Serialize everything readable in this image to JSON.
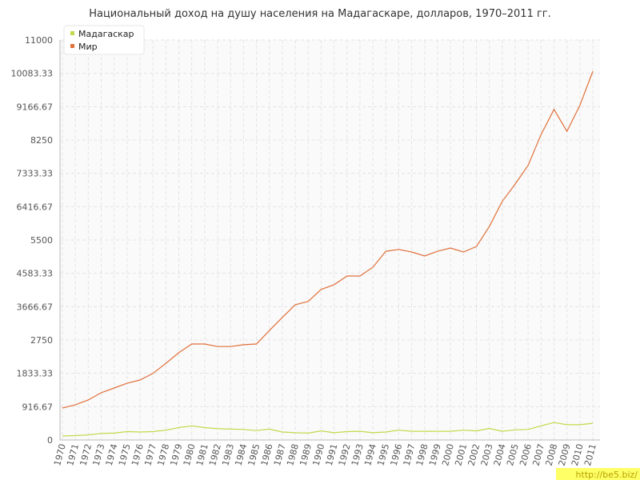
{
  "chart_data": {
    "type": "line",
    "title": "Национальный доход на душу населения на Мадагаскаре, долларов, 1970–2011 гг.",
    "categories": [
      "1970",
      "1971",
      "1972",
      "1973",
      "1974",
      "1975",
      "1976",
      "1977",
      "1978",
      "1979",
      "1980",
      "1981",
      "1982",
      "1983",
      "1984",
      "1985",
      "1986",
      "1987",
      "1988",
      "1989",
      "1990",
      "1991",
      "1992",
      "1993",
      "1994",
      "1995",
      "1996",
      "1997",
      "1998",
      "1999",
      "2000",
      "2001",
      "2002",
      "2003",
      "2004",
      "2005",
      "2006",
      "2007",
      "2008",
      "2009",
      "2010",
      "2011"
    ],
    "series": [
      {
        "name": "Мадагаскар",
        "color": "#c2d94a",
        "values": [
          110,
          120,
          140,
          180,
          190,
          230,
          220,
          230,
          270,
          340,
          390,
          340,
          310,
          300,
          290,
          260,
          300,
          220,
          200,
          190,
          250,
          200,
          230,
          240,
          200,
          220,
          270,
          240,
          240,
          240,
          240,
          270,
          250,
          320,
          240,
          280,
          290,
          390,
          480,
          420,
          420,
          460
        ]
      },
      {
        "name": "Мир",
        "color": "#e0703a",
        "values": [
          880,
          970,
          1100,
          1300,
          1430,
          1560,
          1650,
          1830,
          2110,
          2400,
          2640,
          2640,
          2570,
          2570,
          2620,
          2640,
          3010,
          3370,
          3720,
          3810,
          4140,
          4270,
          4510,
          4510,
          4750,
          5190,
          5240,
          5170,
          5060,
          5190,
          5280,
          5170,
          5320,
          5870,
          6560,
          7040,
          7550,
          8400,
          9090,
          8490,
          9200,
          10140
        ]
      }
    ],
    "ylim": [
      0,
      11000
    ],
    "yticks": [
      0,
      916.67,
      1833.33,
      2750,
      3666.67,
      4583.33,
      5500,
      6416.67,
      7333.33,
      8250,
      9166.67,
      10083.33,
      11000
    ],
    "grid": true,
    "legend": "top-left",
    "watermark": "http://be5.biz/"
  }
}
